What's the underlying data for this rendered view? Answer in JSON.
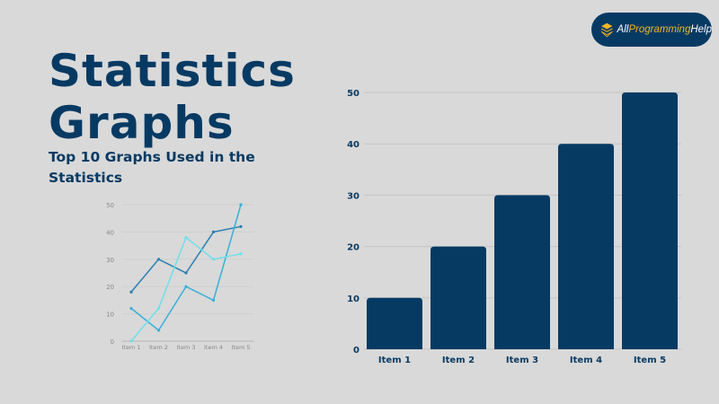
{
  "header": {
    "title_line1": "Statistics",
    "title_line2": "Graphs",
    "subtitle": "Top 10 Graphs Used in the Statistics"
  },
  "logo": {
    "text_part1": "All",
    "text_part2": "Programming",
    "text_part3": "Help",
    "icon": "layers-icon"
  },
  "colors": {
    "background": "#d9d9d9",
    "primary": "#073a63",
    "logo_accent": "#f2b81f"
  },
  "chart_data": [
    {
      "type": "line",
      "categories": [
        "Item 1",
        "Item 2",
        "Item 3",
        "Item 4",
        "Item 5"
      ],
      "yticks": [
        0,
        10,
        20,
        30,
        40,
        50
      ],
      "ylim": [
        0,
        50
      ],
      "grid": true,
      "series": [
        {
          "values": [
            18,
            30,
            25,
            40,
            42
          ],
          "color": "#2a7fb0"
        },
        {
          "values": [
            12,
            4,
            20,
            15,
            50
          ],
          "color": "#38b0d6"
        },
        {
          "values": [
            0,
            12,
            38,
            30,
            32
          ],
          "color": "#6ee0ea"
        }
      ]
    },
    {
      "type": "bar",
      "categories": [
        "Item 1",
        "Item 2",
        "Item 3",
        "Item 4",
        "Item 5"
      ],
      "values": [
        10,
        20,
        30,
        40,
        50
      ],
      "yticks": [
        0,
        10,
        20,
        30,
        40,
        50
      ],
      "ylim": [
        0,
        50
      ],
      "grid": true,
      "color": "#073a63"
    }
  ]
}
